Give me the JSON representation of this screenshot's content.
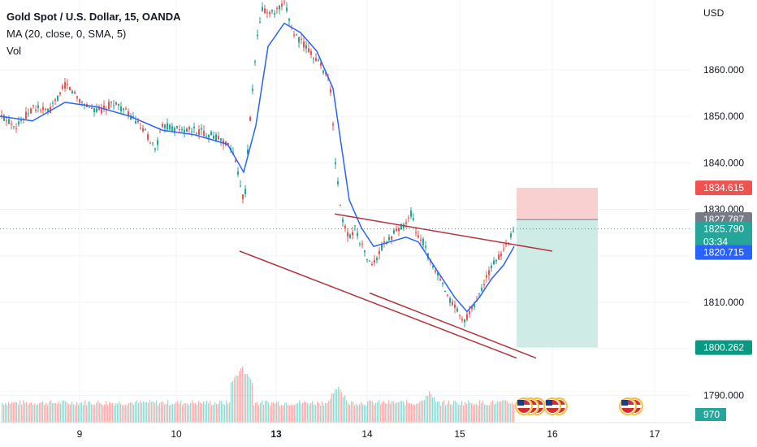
{
  "legend": {
    "title": "Gold Spot / U.S. Dollar, 15, OANDA",
    "indicator": "MA (20, close, 0, SMA, 5)",
    "volume": "Vol"
  },
  "currency": "USD",
  "colors": {
    "up": "#26a69a",
    "down": "#ef5350",
    "ma": "#2962ff",
    "trendline": "#b2353f",
    "current": "#26a69a",
    "stop_zone": "#f8c8c8",
    "target_zone": "#c5e8e2"
  },
  "chart_data": {
    "type": "candlestick",
    "ylim": [
      1785,
      1875
    ],
    "x_ticks": [
      "9",
      "10",
      "13",
      "14",
      "15",
      "16",
      "17"
    ],
    "y_ticks": [
      "1790.000",
      "1800.000",
      "1810.000",
      "1820.000",
      "1830.000",
      "1840.000",
      "1850.000",
      "1860.000"
    ],
    "price_path": [
      [
        0,
        1850
      ],
      [
        20,
        1848
      ],
      [
        40,
        1852
      ],
      [
        60,
        1851
      ],
      [
        80,
        1857
      ],
      [
        100,
        1853
      ],
      [
        120,
        1851
      ],
      [
        140,
        1853
      ],
      [
        160,
        1850
      ],
      [
        180,
        1846
      ],
      [
        190,
        1843
      ],
      [
        200,
        1848
      ],
      [
        220,
        1847
      ],
      [
        240,
        1847
      ],
      [
        260,
        1846
      ],
      [
        280,
        1844
      ],
      [
        290,
        1840
      ],
      [
        300,
        1831
      ],
      [
        305,
        1845
      ],
      [
        315,
        1866
      ],
      [
        322,
        1873
      ],
      [
        335,
        1872
      ],
      [
        350,
        1874
      ],
      [
        360,
        1868
      ],
      [
        375,
        1865
      ],
      [
        390,
        1862
      ],
      [
        405,
        1858
      ],
      [
        412,
        1840
      ],
      [
        420,
        1828
      ],
      [
        428,
        1824
      ],
      [
        436,
        1826
      ],
      [
        445,
        1822
      ],
      [
        455,
        1818
      ],
      [
        462,
        1819
      ],
      [
        470,
        1822
      ],
      [
        480,
        1824
      ],
      [
        490,
        1826
      ],
      [
        500,
        1827
      ],
      [
        505,
        1829
      ],
      [
        512,
        1825
      ],
      [
        520,
        1823
      ],
      [
        530,
        1818
      ],
      [
        540,
        1815
      ],
      [
        550,
        1811
      ],
      [
        560,
        1809
      ],
      [
        568,
        1806
      ],
      [
        575,
        1807
      ],
      [
        585,
        1810
      ],
      [
        595,
        1814
      ],
      [
        605,
        1818
      ],
      [
        615,
        1820
      ],
      [
        625,
        1823
      ],
      [
        633,
        1826
      ]
    ],
    "ma_path": [
      [
        0,
        1850
      ],
      [
        40,
        1849
      ],
      [
        80,
        1853
      ],
      [
        120,
        1852
      ],
      [
        160,
        1850
      ],
      [
        200,
        1847
      ],
      [
        240,
        1846
      ],
      [
        280,
        1844
      ],
      [
        300,
        1838
      ],
      [
        315,
        1848
      ],
      [
        330,
        1865
      ],
      [
        350,
        1870
      ],
      [
        370,
        1868
      ],
      [
        390,
        1864
      ],
      [
        410,
        1856
      ],
      [
        420,
        1844
      ],
      [
        430,
        1832
      ],
      [
        445,
        1826
      ],
      [
        460,
        1822
      ],
      [
        480,
        1823
      ],
      [
        500,
        1824
      ],
      [
        515,
        1823
      ],
      [
        530,
        1819
      ],
      [
        545,
        1815
      ],
      [
        560,
        1811
      ],
      [
        575,
        1808
      ],
      [
        590,
        1811
      ],
      [
        605,
        1815
      ],
      [
        620,
        1818
      ],
      [
        633,
        1822
      ]
    ],
    "volume_bars": {
      "baseline": 1787.8,
      "spikes": [
        [
          297,
          1796.5
        ],
        [
          415,
          1792.5
        ],
        [
          528,
          1791.5
        ]
      ]
    },
    "trendlines": [
      {
        "from": [
          412,
          1829
        ],
        "to": [
          680,
          1821
        ]
      },
      {
        "from": [
          295,
          1821
        ],
        "to": [
          636,
          1798
        ]
      },
      {
        "from": [
          455,
          1812
        ],
        "to": [
          660,
          1798
        ]
      }
    ],
    "position": {
      "x_start": 636,
      "x_end": 736,
      "entry": 1827.787,
      "stop": 1834.615,
      "target": 1800.262
    },
    "price_tags": [
      {
        "price": 1834.615,
        "label": "1834.615",
        "color": "#ef5350"
      },
      {
        "price": 1827.787,
        "label": "1827.787",
        "color": "#787b86"
      },
      {
        "price": 1825.79,
        "label": "1825.790",
        "sublabel": "03:34",
        "color": "#26a69a"
      },
      {
        "price": 1820.715,
        "label": "1820.715",
        "color": "#2962ff"
      },
      {
        "price": 1800.262,
        "label": "1800.262",
        "color": "#089981"
      }
    ],
    "volume_tag": {
      "label": "970",
      "color": "#26a69a"
    },
    "event_markers": [
      {
        "x": 645,
        "count": 3
      },
      {
        "x": 680,
        "count": 2
      },
      {
        "x": 773,
        "count": 2
      }
    ]
  }
}
